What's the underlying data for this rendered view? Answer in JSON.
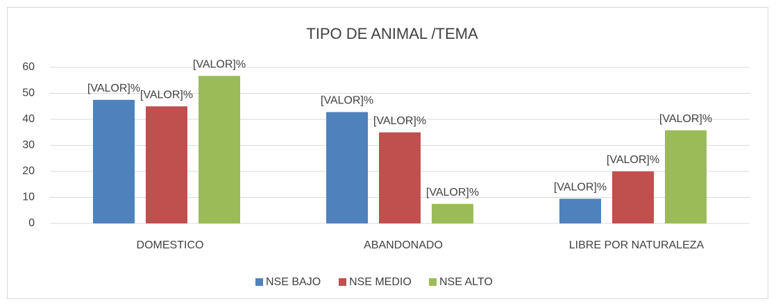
{
  "chart_data": {
    "type": "bar",
    "title": "TIPO DE ANIMAL /TEMA",
    "categories": [
      "DOMESTICO",
      "ABANDONADO",
      "LIBRE POR NATURALEZA"
    ],
    "series": [
      {
        "name": "NSE BAJO",
        "color": "#4f81bd",
        "values": [
          47.5,
          42.8,
          9.5
        ],
        "value_labels": [
          "[VALOR]%",
          "[VALOR]%",
          "[VALOR]%"
        ]
      },
      {
        "name": "NSE MEDIO",
        "color": "#c0504d",
        "values": [
          45,
          35,
          20
        ],
        "value_labels": [
          "[VALOR]%",
          "[VALOR]%",
          "[VALOR]%"
        ]
      },
      {
        "name": "NSE ALTO",
        "color": "#9bbb59",
        "values": [
          56.7,
          7.5,
          35.8
        ],
        "value_labels": [
          "[VALOR]%",
          "[VALOR]%",
          "[VALOR]%"
        ]
      }
    ],
    "ylim": [
      0,
      60
    ],
    "yticks": [
      0,
      10,
      20,
      30,
      40,
      50,
      60
    ],
    "grid": true,
    "legend": "bottom"
  }
}
